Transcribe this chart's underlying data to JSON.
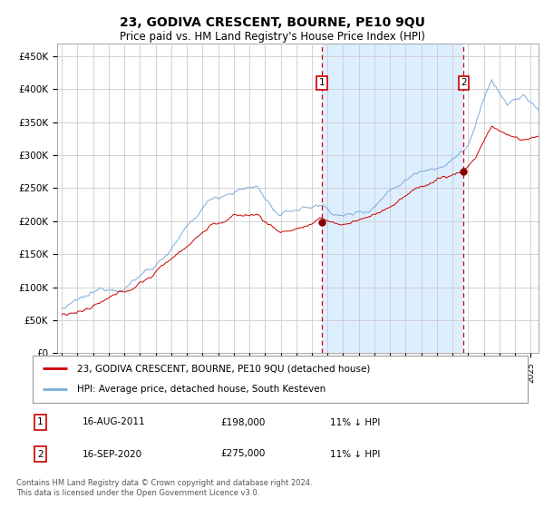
{
  "title": "23, GODIVA CRESCENT, BOURNE, PE10 9QU",
  "subtitle": "Price paid vs. HM Land Registry's House Price Index (HPI)",
  "legend_line1": "23, GODIVA CRESCENT, BOURNE, PE10 9QU (detached house)",
  "legend_line2": "HPI: Average price, detached house, South Kesteven",
  "annotation1_date_str": "16-AUG-2011",
  "annotation1_price_str": "£198,000",
  "annotation1_hpi_str": "11% ↓ HPI",
  "annotation1_year": 2011.62,
  "annotation1_price": 198000,
  "annotation2_date_str": "16-SEP-2020",
  "annotation2_price_str": "£275,000",
  "annotation2_hpi_str": "11% ↓ HPI",
  "annotation2_year": 2020.71,
  "annotation2_price": 275000,
  "footer": "Contains HM Land Registry data © Crown copyright and database right 2024.\nThis data is licensed under the Open Government Licence v3.0.",
  "fill_color": "#ddeeff",
  "grid_color": "#cccccc",
  "line_color_red": "#cc0000",
  "line_color_blue": "#7aabdb",
  "vline_color": "#cc0000",
  "ylim": [
    0,
    470000
  ],
  "yticks": [
    0,
    50000,
    100000,
    150000,
    200000,
    250000,
    300000,
    350000,
    400000,
    450000
  ],
  "ytick_labels": [
    "£0",
    "£50K",
    "£100K",
    "£150K",
    "£200K",
    "£250K",
    "£300K",
    "£350K",
    "£400K",
    "£450K"
  ],
  "xlim_start": 1994.7,
  "xlim_end": 2025.5
}
